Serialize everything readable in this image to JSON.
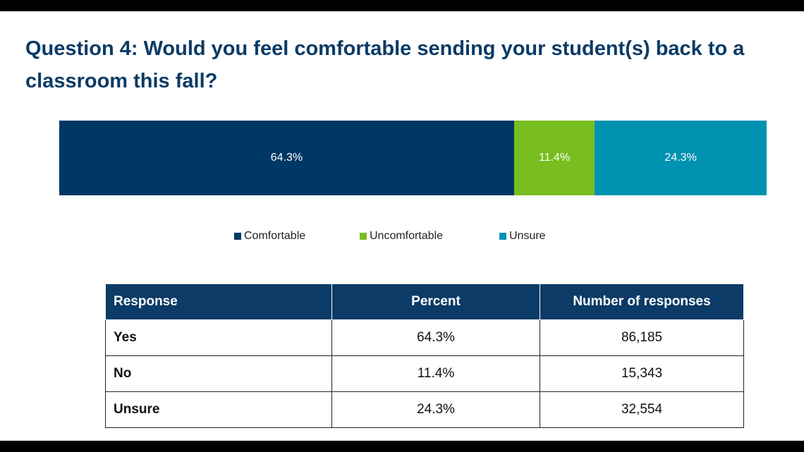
{
  "title": "Question 4: Would you feel comfortable sending your student(s) back to a classroom this fall?",
  "chart_data": {
    "type": "bar",
    "orientation": "horizontal-stacked-100",
    "categories": [
      "Comfortable",
      "Uncomfortable",
      "Unsure"
    ],
    "values": [
      64.3,
      11.4,
      24.3
    ],
    "labels": [
      "64.3%",
      "11.4%",
      "24.3%"
    ],
    "colors": [
      "#003865",
      "#78be20",
      "#0092b1"
    ],
    "legend_position": "bottom",
    "grid": false
  },
  "legend": [
    {
      "label": "Comfortable",
      "color": "#003865"
    },
    {
      "label": "Uncomfortable",
      "color": "#78be20"
    },
    {
      "label": "Unsure",
      "color": "#0092b1"
    }
  ],
  "table": {
    "headers": [
      "Response",
      "Percent",
      "Number of responses"
    ],
    "rows": [
      [
        "Yes",
        "64.3%",
        "86,185"
      ],
      [
        "No",
        "11.4%",
        "15,343"
      ],
      [
        "Unsure",
        "24.3%",
        "32,554"
      ]
    ]
  }
}
